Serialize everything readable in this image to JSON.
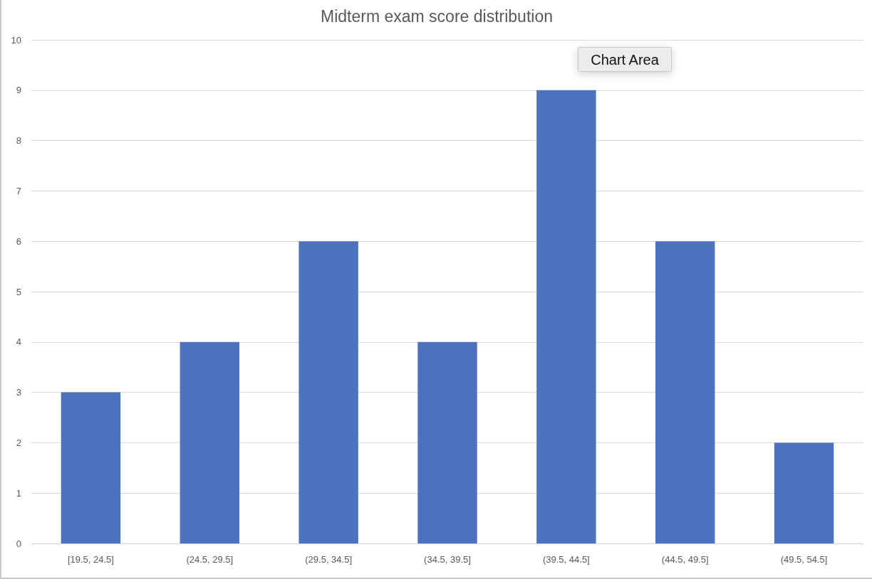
{
  "chart_data": {
    "type": "bar",
    "title": "Midterm exam score distribution",
    "categories": [
      "[19.5, 24.5]",
      "(24.5, 29.5]",
      "(29.5, 34.5]",
      "(34.5, 39.5]",
      "(39.5, 44.5]",
      "(44.5, 49.5]",
      "(49.5, 54.5]"
    ],
    "values": [
      3,
      4,
      6,
      4,
      9,
      6,
      2
    ],
    "color": "#4e73be",
    "ylim": [
      0,
      10
    ],
    "yticks": [
      0,
      1,
      2,
      3,
      4,
      5,
      6,
      7,
      8,
      9,
      10
    ],
    "grid": "y",
    "annotations": [
      "Chart Area"
    ]
  }
}
